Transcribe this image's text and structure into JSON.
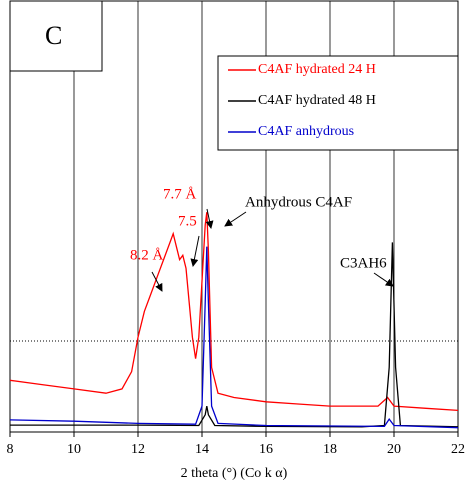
{
  "chart_data": {
    "type": "line",
    "title": "C",
    "xlabel": "2 theta (°) (Co k α)",
    "xlim": [
      8,
      22
    ],
    "xticks": [
      8,
      10,
      12,
      14,
      16,
      18,
      20,
      22
    ],
    "ylim": [
      0,
      100
    ],
    "grid": true,
    "series": [
      {
        "name": "C4AF hydrated 24 H",
        "color": "#ff0000",
        "x": [
          8,
          9,
          10,
          11,
          11.5,
          11.8,
          12,
          12.2,
          12.4,
          12.6,
          12.8,
          13,
          13.1,
          13.2,
          13.3,
          13.4,
          13.5,
          13.6,
          13.7,
          13.8,
          13.9,
          14,
          14.1,
          14.15,
          14.2,
          14.3,
          14.5,
          15,
          16,
          17,
          18,
          19,
          19.5,
          19.8,
          20,
          21,
          22
        ],
        "values": [
          12,
          11,
          10,
          9,
          10,
          14,
          22,
          28,
          32,
          36,
          40,
          44,
          46,
          43,
          40,
          41,
          38,
          30,
          22,
          17,
          22,
          35,
          48,
          51,
          42,
          15,
          9,
          8,
          7,
          6.5,
          6,
          6,
          6,
          8,
          6,
          5.5,
          5
        ]
      },
      {
        "name": "C4AF hydrated 48 H",
        "color": "#000000",
        "x": [
          8,
          12,
          13.9,
          14.1,
          14.15,
          14.2,
          14.4,
          16,
          19,
          19.7,
          19.85,
          19.95,
          20.05,
          20.2,
          22
        ],
        "values": [
          1.6,
          1.6,
          1.5,
          4,
          6,
          4,
          1.5,
          1.3,
          1.2,
          1.5,
          15,
          44,
          15,
          1.5,
          1.2
        ]
      },
      {
        "name": "C4AF anhydrous",
        "color": "#0000cc",
        "x": [
          8,
          10,
          12,
          13.8,
          14,
          14.1,
          14.15,
          14.2,
          14.3,
          14.5,
          16,
          19.7,
          19.85,
          20,
          22
        ],
        "values": [
          2.8,
          2.5,
          2,
          1.8,
          6,
          30,
          43,
          30,
          6,
          2,
          1.5,
          1.3,
          3,
          1.5,
          1
        ]
      }
    ],
    "annotations": [
      {
        "text": "8.2 Å",
        "color": "#ff0000"
      },
      {
        "text": "7.7 Å",
        "color": "#ff0000"
      },
      {
        "text": "7.5",
        "color": "#ff0000"
      },
      {
        "text": "Anhydrous C4AF",
        "color": "#000000"
      },
      {
        "text": "C3AH6",
        "color": "#000000"
      }
    ]
  }
}
